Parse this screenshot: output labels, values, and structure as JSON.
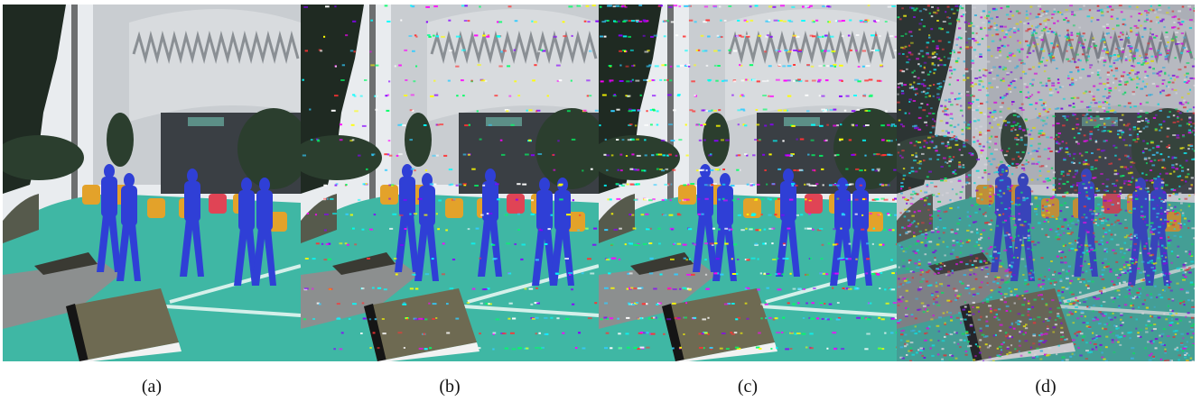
{
  "figure": {
    "panels": [
      {
        "id": "a",
        "caption": "(a)",
        "noise_level": 0.0
      },
      {
        "id": "b",
        "caption": "(b)",
        "noise_level": 0.12
      },
      {
        "id": "c",
        "caption": "(c)",
        "noise_level": 0.28
      },
      {
        "id": "d",
        "caption": "(d)",
        "noise_level": 0.85
      }
    ]
  },
  "colors": {
    "sky": "#e9ecef",
    "building": "#c9cdd1",
    "road_overlay": "#3fb7a4",
    "person_overlay": "#2f3fd6",
    "barrier_orange": "#e3a22a",
    "barrier_red": "#e04455",
    "planter": "#6e6a52",
    "curb_white": "#f2f2f2",
    "curb_black": "#151515",
    "trees": "#2b3e2e"
  }
}
